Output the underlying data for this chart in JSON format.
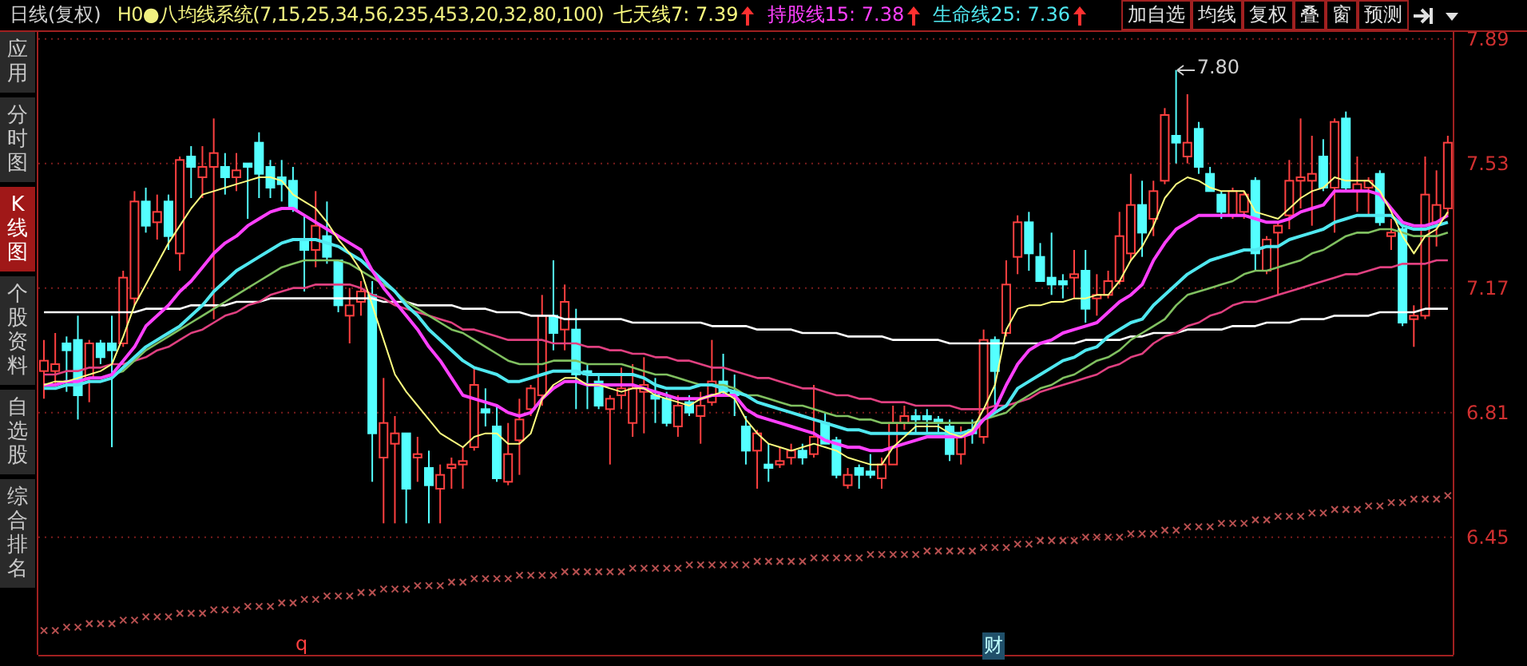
{
  "chart_data": {
    "type": "candlestick",
    "title": "日线(复权)",
    "subtitle": "H0●八均线系统(7,15,25,34,56,235,453,20,32,80,100)",
    "categories": [
      null,
      null,
      null,
      null,
      null,
      null,
      null,
      null,
      null,
      null,
      null,
      null,
      null,
      null,
      null,
      null,
      null,
      null,
      null,
      null,
      null,
      null,
      null,
      null,
      null,
      null,
      null,
      null,
      null,
      null,
      null,
      null,
      null,
      null,
      null,
      null,
      null,
      null,
      null,
      null,
      null,
      null,
      null,
      null,
      null,
      null,
      null,
      null,
      null,
      null,
      null,
      null,
      null,
      null,
      null,
      null,
      null,
      null,
      null,
      null,
      null,
      null,
      null,
      null,
      null,
      null,
      null,
      null,
      null,
      null,
      null,
      null,
      null,
      null,
      null,
      null,
      null,
      null,
      null,
      null,
      null,
      null,
      null,
      null,
      null,
      null,
      null,
      null,
      null,
      null,
      null,
      null,
      null,
      null,
      null,
      null,
      null,
      null,
      null,
      null,
      null,
      null,
      null,
      null,
      null,
      null,
      null,
      null,
      null,
      null,
      null,
      null,
      null,
      null,
      null,
      null,
      null,
      null,
      null,
      null,
      null,
      null,
      null,
      null,
      null
    ],
    "ohlc": [
      [
        6.93,
        7.02,
        6.85,
        6.96
      ],
      [
        6.93,
        7.04,
        6.89,
        6.95
      ],
      [
        7.01,
        7.03,
        6.87,
        6.99
      ],
      [
        7.02,
        7.09,
        6.79,
        6.86
      ],
      [
        6.91,
        7.02,
        6.84,
        7.01
      ],
      [
        7.01,
        7.02,
        6.95,
        6.97
      ],
      [
        7.01,
        7.09,
        6.71,
        6.99
      ],
      [
        7.01,
        7.22,
        7.0,
        7.2
      ],
      [
        7.14,
        7.45,
        7.12,
        7.42
      ],
      [
        7.42,
        7.46,
        7.33,
        7.35
      ],
      [
        7.36,
        7.44,
        7.31,
        7.39
      ],
      [
        7.42,
        7.44,
        7.28,
        7.32
      ],
      [
        7.27,
        7.55,
        7.22,
        7.54
      ],
      [
        7.55,
        7.58,
        7.43,
        7.52
      ],
      [
        7.49,
        7.58,
        7.43,
        7.52
      ],
      [
        7.52,
        7.66,
        7.08,
        7.56
      ],
      [
        7.52,
        7.56,
        7.44,
        7.49
      ],
      [
        7.49,
        7.56,
        7.45,
        7.51
      ],
      [
        7.53,
        7.53,
        7.37,
        7.52
      ],
      [
        7.59,
        7.62,
        7.43,
        7.5
      ],
      [
        7.52,
        7.54,
        7.43,
        7.46
      ],
      [
        7.49,
        7.54,
        7.42,
        7.47
      ],
      [
        7.48,
        7.52,
        7.39,
        7.4
      ],
      [
        7.31,
        7.38,
        7.16,
        7.28
      ],
      [
        7.28,
        7.45,
        7.23,
        7.35
      ],
      [
        7.32,
        7.42,
        7.24,
        7.26
      ],
      [
        7.25,
        7.25,
        7.1,
        7.12
      ],
      [
        7.09,
        7.17,
        7.01,
        7.12
      ],
      [
        7.13,
        7.19,
        7.09,
        7.16
      ],
      [
        7.15,
        7.19,
        6.61,
        6.75
      ],
      [
        6.68,
        6.91,
        6.49,
        6.78
      ],
      [
        6.72,
        6.8,
        6.49,
        6.75
      ],
      [
        6.75,
        6.75,
        6.49,
        6.59
      ],
      [
        6.68,
        6.74,
        6.61,
        6.69
      ],
      [
        6.65,
        6.7,
        6.49,
        6.6
      ],
      [
        6.59,
        6.66,
        6.49,
        6.63
      ],
      [
        6.65,
        6.68,
        6.59,
        6.66
      ],
      [
        6.66,
        6.71,
        6.59,
        6.67
      ],
      [
        6.71,
        6.94,
        6.7,
        6.89
      ],
      [
        6.82,
        6.88,
        6.77,
        6.81
      ],
      [
        6.77,
        6.83,
        6.61,
        6.62
      ],
      [
        6.61,
        6.78,
        6.6,
        6.69
      ],
      [
        6.73,
        6.85,
        6.63,
        6.79
      ],
      [
        6.82,
        6.89,
        6.8,
        6.88
      ],
      [
        6.86,
        7.15,
        6.83,
        7.09
      ],
      [
        7.09,
        7.25,
        6.99,
        7.04
      ],
      [
        7.05,
        7.18,
        6.99,
        7.13
      ],
      [
        7.05,
        7.11,
        6.82,
        6.92
      ],
      [
        6.93,
        6.95,
        6.82,
        6.92
      ],
      [
        6.9,
        6.92,
        6.82,
        6.83
      ],
      [
        6.82,
        6.86,
        6.66,
        6.85
      ],
      [
        6.86,
        6.94,
        6.82,
        6.88
      ],
      [
        6.78,
        6.95,
        6.74,
        6.88
      ],
      [
        6.87,
        6.97,
        6.75,
        6.89
      ],
      [
        6.86,
        6.91,
        6.78,
        6.85
      ],
      [
        6.85,
        6.87,
        6.77,
        6.78
      ],
      [
        6.77,
        6.86,
        6.74,
        6.83
      ],
      [
        6.84,
        6.86,
        6.8,
        6.81
      ],
      [
        6.8,
        6.87,
        6.72,
        6.83
      ],
      [
        6.84,
        7.02,
        6.83,
        6.9
      ],
      [
        6.9,
        6.98,
        6.86,
        6.87
      ],
      [
        6.87,
        6.92,
        6.8,
        6.86
      ],
      [
        6.77,
        6.8,
        6.66,
        6.7
      ],
      [
        6.7,
        6.76,
        6.59,
        6.75
      ],
      [
        6.66,
        6.72,
        6.61,
        6.65
      ],
      [
        6.66,
        6.71,
        6.65,
        6.67
      ],
      [
        6.68,
        6.72,
        6.66,
        6.7
      ],
      [
        6.7,
        6.72,
        6.66,
        6.68
      ],
      [
        6.69,
        6.89,
        6.68,
        6.74
      ],
      [
        6.78,
        6.81,
        6.72,
        6.72
      ],
      [
        6.73,
        6.74,
        6.62,
        6.63
      ],
      [
        6.6,
        6.65,
        6.59,
        6.63
      ],
      [
        6.65,
        6.66,
        6.59,
        6.63
      ],
      [
        6.64,
        6.69,
        6.62,
        6.63
      ],
      [
        6.62,
        6.68,
        6.59,
        6.66
      ],
      [
        6.66,
        6.83,
        6.66,
        6.78
      ],
      [
        6.78,
        6.83,
        6.76,
        6.8
      ],
      [
        6.8,
        6.82,
        6.75,
        6.79
      ],
      [
        6.8,
        6.82,
        6.75,
        6.79
      ],
      [
        6.79,
        6.8,
        6.75,
        6.78
      ],
      [
        6.77,
        6.79,
        6.67,
        6.69
      ],
      [
        6.69,
        6.77,
        6.66,
        6.74
      ],
      [
        6.76,
        6.79,
        6.72,
        6.75
      ],
      [
        6.74,
        7.05,
        6.72,
        7.02
      ],
      [
        7.02,
        7.03,
        6.83,
        6.93
      ],
      [
        7.04,
        7.25,
        7.03,
        7.18
      ],
      [
        7.26,
        7.38,
        7.21,
        7.36
      ],
      [
        7.36,
        7.39,
        7.22,
        7.27
      ],
      [
        7.26,
        7.3,
        7.19,
        7.19
      ],
      [
        7.2,
        7.33,
        7.15,
        7.18
      ],
      [
        7.19,
        7.21,
        7.14,
        7.18
      ],
      [
        7.2,
        7.28,
        7.14,
        7.21
      ],
      [
        7.22,
        7.28,
        7.07,
        7.11
      ],
      [
        7.14,
        7.21,
        7.09,
        7.15
      ],
      [
        7.15,
        7.22,
        7.14,
        7.19
      ],
      [
        7.19,
        7.39,
        7.18,
        7.32
      ],
      [
        7.27,
        7.5,
        7.25,
        7.41
      ],
      [
        7.41,
        7.48,
        7.26,
        7.33
      ],
      [
        7.37,
        7.48,
        7.32,
        7.45
      ],
      [
        7.48,
        7.69,
        7.47,
        7.67
      ],
      [
        7.61,
        7.8,
        7.53,
        7.59
      ],
      [
        7.55,
        7.73,
        7.53,
        7.59
      ],
      [
        7.63,
        7.65,
        7.5,
        7.52
      ],
      [
        7.5,
        7.52,
        7.45,
        7.45
      ],
      [
        7.44,
        7.45,
        7.37,
        7.39
      ],
      [
        7.38,
        7.46,
        7.37,
        7.45
      ],
      [
        7.39,
        7.45,
        7.37,
        7.44
      ],
      [
        7.48,
        7.49,
        7.22,
        7.27
      ],
      [
        7.22,
        7.32,
        7.21,
        7.31
      ],
      [
        7.33,
        7.36,
        7.15,
        7.35
      ],
      [
        7.38,
        7.54,
        7.34,
        7.48
      ],
      [
        7.48,
        7.66,
        7.4,
        7.49
      ],
      [
        7.48,
        7.61,
        7.35,
        7.5
      ],
      [
        7.55,
        7.6,
        7.45,
        7.46
      ],
      [
        7.46,
        7.66,
        7.33,
        7.65
      ],
      [
        7.66,
        7.68,
        7.45,
        7.46
      ],
      [
        7.45,
        7.55,
        7.39,
        7.47
      ],
      [
        7.46,
        7.49,
        7.38,
        7.48
      ],
      [
        7.5,
        7.51,
        7.35,
        7.36
      ],
      [
        7.32,
        7.37,
        7.28,
        7.33
      ],
      [
        7.34,
        7.35,
        7.06,
        7.07
      ],
      [
        7.08,
        7.12,
        7.0,
        7.09
      ],
      [
        7.09,
        7.55,
        7.08,
        7.44
      ],
      [
        7.36,
        7.51,
        7.29,
        7.41
      ],
      [
        7.4,
        7.61,
        7.38,
        7.59
      ]
    ],
    "colors": [
      "#ff4040",
      "#ff4040",
      "#54ffff",
      "#54ffff",
      "#ff4040",
      "#54ffff",
      "#54ffff",
      "#ff4040",
      "#ff4040",
      "#54ffff",
      "#ff4040",
      "#54ffff",
      "#ff4040",
      "#54ffff",
      "#ff4040",
      "#ff4040",
      "#54ffff",
      "#ff4040",
      "#54ffff",
      "#54ffff",
      "#54ffff",
      "#54ffff",
      "#54ffff",
      "#54ffff",
      "#ff4040",
      "#54ffff",
      "#54ffff",
      "#ff4040",
      "#ff4040",
      "#54ffff",
      "#ff4040",
      "#ff4040",
      "#54ffff",
      "#ff4040",
      "#54ffff",
      "#ff4040",
      "#ff4040",
      "#ff4040",
      "#ff4040",
      "#54ffff",
      "#54ffff",
      "#ff4040",
      "#ff4040",
      "#ff4040",
      "#ff4040",
      "#54ffff",
      "#ff4040",
      "#54ffff",
      "#54ffff",
      "#54ffff",
      "#ff4040",
      "#ff4040",
      "#ff4040",
      "#ff4040",
      "#54ffff",
      "#54ffff",
      "#ff4040",
      "#54ffff",
      "#ff4040",
      "#ff4040",
      "#54ffff",
      "#54ffff",
      "#54ffff",
      "#ff4040",
      "#54ffff",
      "#ff4040",
      "#ff4040",
      "#54ffff",
      "#ff4040",
      "#54ffff",
      "#54ffff",
      "#ff4040",
      "#54ffff",
      "#54ffff",
      "#ff4040",
      "#ff4040",
      "#ff4040",
      "#54ffff",
      "#54ffff",
      "#54ffff",
      "#54ffff",
      "#ff4040",
      "#54ffff",
      "#ff4040",
      "#54ffff",
      "#ff4040",
      "#ff4040",
      "#54ffff",
      "#54ffff",
      "#54ffff",
      "#54ffff",
      "#ff4040",
      "#54ffff",
      "#ff4040",
      "#ff4040",
      "#ff4040",
      "#ff4040",
      "#54ffff",
      "#ff4040",
      "#ff4040",
      "#54ffff",
      "#ff4040",
      "#54ffff",
      "#54ffff",
      "#54ffff",
      "#ff4040",
      "#ff4040",
      "#54ffff",
      "#ff4040",
      "#ff4040",
      "#ff4040",
      "#ff4040",
      "#ff4040",
      "#54ffff",
      "#ff4040",
      "#54ffff",
      "#ff4040",
      "#ff4040",
      "#54ffff",
      "#ff4040",
      "#54ffff",
      "#ff4040",
      "#ff4040",
      "#ff4040",
      "#ff4040"
    ],
    "series": [
      {
        "type": "line",
        "name": "七天线7: 7.39",
        "color": "#ffff80",
        "values": [
          6.89,
          6.9,
          6.9,
          6.91,
          6.92,
          6.93,
          6.95,
          7.03,
          7.12,
          7.18,
          7.24,
          7.3,
          7.35,
          7.4,
          7.44,
          7.45,
          7.46,
          7.47,
          7.48,
          7.49,
          7.49,
          7.48,
          7.44,
          7.42,
          7.4,
          7.36,
          7.31,
          7.27,
          7.22,
          7.12,
          7.02,
          6.92,
          6.87,
          6.83,
          6.79,
          6.75,
          6.73,
          6.71,
          6.74,
          6.75,
          6.75,
          6.72,
          6.72,
          6.75,
          6.85,
          6.89,
          6.91,
          6.91,
          6.89,
          6.89,
          6.88,
          6.87,
          6.88,
          6.88,
          6.86,
          6.85,
          6.84,
          6.83,
          6.85,
          6.86,
          6.87,
          6.85,
          6.79,
          6.75,
          6.72,
          6.71,
          6.7,
          6.71,
          6.72,
          6.71,
          6.7,
          6.68,
          6.67,
          6.66,
          6.66,
          6.71,
          6.74,
          6.77,
          6.77,
          6.77,
          6.75,
          6.74,
          6.76,
          6.82,
          6.89,
          7.05,
          7.11,
          7.12,
          7.12,
          7.13,
          7.13,
          7.14,
          7.14,
          7.15,
          7.15,
          7.19,
          7.25,
          7.29,
          7.35,
          7.43,
          7.47,
          7.49,
          7.48,
          7.46,
          7.45,
          7.45,
          7.45,
          7.39,
          7.38,
          7.37,
          7.4,
          7.43,
          7.45,
          7.46,
          7.49,
          7.48,
          7.48,
          7.48,
          7.45,
          7.39,
          7.32,
          7.27,
          7.32,
          7.34,
          7.39
        ]
      },
      {
        "type": "line",
        "name": "持股线15: 7.38",
        "color": "#ff40ff",
        "values": [
          6.89,
          6.89,
          6.9,
          6.9,
          6.91,
          6.91,
          6.92,
          6.96,
          7.0,
          7.06,
          7.09,
          7.12,
          7.16,
          7.19,
          7.23,
          7.27,
          7.3,
          7.32,
          7.35,
          7.37,
          7.39,
          7.4,
          7.4,
          7.38,
          7.36,
          7.34,
          7.32,
          7.3,
          7.28,
          7.22,
          7.17,
          7.13,
          7.09,
          7.05,
          7.0,
          6.96,
          6.91,
          6.86,
          6.85,
          6.84,
          6.83,
          6.81,
          6.8,
          6.81,
          6.85,
          6.88,
          6.9,
          6.9,
          6.89,
          6.89,
          6.89,
          6.89,
          6.89,
          6.88,
          6.87,
          6.86,
          6.85,
          6.85,
          6.85,
          6.86,
          6.86,
          6.86,
          6.82,
          6.8,
          6.79,
          6.78,
          6.77,
          6.76,
          6.75,
          6.73,
          6.72,
          6.71,
          6.71,
          6.7,
          6.7,
          6.71,
          6.72,
          6.73,
          6.74,
          6.74,
          6.74,
          6.74,
          6.75,
          6.79,
          6.82,
          6.89,
          6.95,
          6.99,
          7.01,
          7.02,
          7.04,
          7.05,
          7.06,
          7.07,
          7.1,
          7.13,
          7.15,
          7.18,
          7.25,
          7.3,
          7.34,
          7.36,
          7.38,
          7.38,
          7.38,
          7.38,
          7.38,
          7.37,
          7.36,
          7.36,
          7.37,
          7.39,
          7.4,
          7.41,
          7.45,
          7.45,
          7.45,
          7.45,
          7.44,
          7.4,
          7.36,
          7.35,
          7.35,
          7.36,
          7.38
        ]
      },
      {
        "type": "line",
        "name": "生命线25: 7.36",
        "color": "#50e8f0",
        "values": [
          6.88,
          6.88,
          6.89,
          6.89,
          6.9,
          6.9,
          6.91,
          6.94,
          6.97,
          7.0,
          7.02,
          7.04,
          7.06,
          7.09,
          7.12,
          7.16,
          7.19,
          7.22,
          7.24,
          7.26,
          7.28,
          7.3,
          7.31,
          7.31,
          7.31,
          7.3,
          7.29,
          7.27,
          7.25,
          7.22,
          7.19,
          7.16,
          7.12,
          7.09,
          7.05,
          7.02,
          6.99,
          6.96,
          6.94,
          6.93,
          6.92,
          6.9,
          6.9,
          6.91,
          6.92,
          6.93,
          6.93,
          6.93,
          6.92,
          6.92,
          6.92,
          6.92,
          6.92,
          6.91,
          6.89,
          6.88,
          6.88,
          6.88,
          6.89,
          6.89,
          6.88,
          6.87,
          6.86,
          6.84,
          6.83,
          6.82,
          6.81,
          6.8,
          6.79,
          6.78,
          6.77,
          6.76,
          6.76,
          6.75,
          6.75,
          6.75,
          6.75,
          6.75,
          6.75,
          6.75,
          6.75,
          6.75,
          6.76,
          6.79,
          6.81,
          6.83,
          6.88,
          6.9,
          6.92,
          6.94,
          6.96,
          6.97,
          6.99,
          7.0,
          7.03,
          7.05,
          7.07,
          7.08,
          7.12,
          7.15,
          7.18,
          7.21,
          7.23,
          7.25,
          7.26,
          7.27,
          7.28,
          7.28,
          7.29,
          7.29,
          7.31,
          7.32,
          7.33,
          7.34,
          7.36,
          7.37,
          7.38,
          7.38,
          7.38,
          7.38,
          7.35,
          7.34,
          7.34,
          7.35,
          7.36
        ]
      },
      {
        "type": "line",
        "color": "#80c060",
        "values": [
          6.89,
          6.89,
          6.9,
          6.9,
          6.91,
          6.91,
          6.92,
          6.93,
          6.96,
          6.99,
          7.01,
          7.03,
          7.05,
          7.07,
          7.09,
          7.11,
          7.13,
          7.15,
          7.17,
          7.19,
          7.21,
          7.23,
          7.24,
          7.25,
          7.25,
          7.25,
          7.25,
          7.24,
          7.22,
          7.2,
          7.18,
          7.16,
          7.13,
          7.11,
          7.09,
          7.07,
          7.05,
          7.04,
          7.02,
          7.0,
          6.98,
          6.96,
          6.95,
          6.95,
          6.95,
          6.96,
          6.96,
          6.96,
          6.95,
          6.95,
          6.95,
          6.95,
          6.94,
          6.93,
          6.92,
          6.92,
          6.91,
          6.9,
          6.89,
          6.89,
          6.89,
          6.88,
          6.86,
          6.86,
          6.85,
          6.84,
          6.83,
          6.83,
          6.82,
          6.81,
          6.8,
          6.8,
          6.79,
          6.79,
          6.78,
          6.78,
          6.78,
          6.78,
          6.78,
          6.78,
          6.78,
          6.78,
          6.78,
          6.79,
          6.8,
          6.81,
          6.84,
          6.86,
          6.88,
          6.89,
          6.91,
          6.92,
          6.94,
          6.96,
          6.97,
          6.99,
          7.02,
          7.04,
          7.06,
          7.08,
          7.12,
          7.15,
          7.16,
          7.17,
          7.18,
          7.19,
          7.21,
          7.22,
          7.22,
          7.23,
          7.24,
          7.25,
          7.27,
          7.28,
          7.3,
          7.32,
          7.33,
          7.33,
          7.34,
          7.34,
          7.33,
          7.32,
          7.32,
          7.32,
          7.33
        ]
      },
      {
        "type": "line",
        "color": "#e04080",
        "values": [
          6.92,
          6.92,
          6.93,
          6.93,
          6.94,
          6.94,
          6.95,
          6.95,
          6.96,
          6.97,
          6.99,
          7.0,
          7.02,
          7.04,
          7.05,
          7.07,
          7.09,
          7.1,
          7.12,
          7.13,
          7.15,
          7.16,
          7.17,
          7.17,
          7.18,
          7.18,
          7.18,
          7.18,
          7.17,
          7.15,
          7.14,
          7.12,
          7.11,
          7.1,
          7.09,
          7.08,
          7.07,
          7.05,
          7.05,
          7.04,
          7.03,
          7.02,
          7.02,
          7.02,
          7.02,
          7.01,
          7.01,
          7.01,
          7.0,
          7.0,
          6.99,
          6.99,
          6.98,
          6.98,
          6.97,
          6.97,
          6.96,
          6.96,
          6.95,
          6.94,
          6.94,
          6.93,
          6.92,
          6.91,
          6.91,
          6.9,
          6.89,
          6.88,
          6.88,
          6.87,
          6.86,
          6.86,
          6.85,
          6.85,
          6.84,
          6.84,
          6.84,
          6.83,
          6.83,
          6.83,
          6.83,
          6.82,
          6.82,
          6.82,
          6.83,
          6.83,
          6.84,
          6.85,
          6.87,
          6.88,
          6.89,
          6.9,
          6.91,
          6.92,
          6.94,
          6.95,
          6.97,
          6.98,
          7.01,
          7.03,
          7.04,
          7.06,
          7.07,
          7.09,
          7.1,
          7.12,
          7.13,
          7.13,
          7.14,
          7.15,
          7.16,
          7.17,
          7.18,
          7.19,
          7.2,
          7.21,
          7.21,
          7.22,
          7.23,
          7.23,
          7.24,
          7.24,
          7.24,
          7.25,
          7.25
        ]
      },
      {
        "type": "line",
        "color": "#ffffff",
        "values": [
          7.1,
          7.1,
          7.1,
          7.1,
          7.1,
          7.1,
          7.1,
          7.1,
          7.1,
          7.11,
          7.11,
          7.11,
          7.11,
          7.12,
          7.12,
          7.12,
          7.12,
          7.13,
          7.13,
          7.13,
          7.14,
          7.14,
          7.14,
          7.14,
          7.14,
          7.14,
          7.14,
          7.14,
          7.14,
          7.14,
          7.13,
          7.13,
          7.13,
          7.12,
          7.12,
          7.12,
          7.12,
          7.11,
          7.11,
          7.11,
          7.1,
          7.1,
          7.1,
          7.09,
          7.09,
          7.09,
          7.08,
          7.08,
          7.08,
          7.08,
          7.08,
          7.08,
          7.07,
          7.07,
          7.07,
          7.07,
          7.07,
          7.07,
          7.07,
          7.06,
          7.06,
          7.06,
          7.06,
          7.05,
          7.05,
          7.05,
          7.05,
          7.04,
          7.04,
          7.04,
          7.04,
          7.03,
          7.03,
          7.03,
          7.03,
          7.02,
          7.02,
          7.02,
          7.02,
          7.02,
          7.01,
          7.01,
          7.01,
          7.01,
          7.01,
          7.01,
          7.01,
          7.01,
          7.01,
          7.01,
          7.01,
          7.01,
          7.02,
          7.02,
          7.02,
          7.02,
          7.03,
          7.03,
          7.04,
          7.04,
          7.04,
          7.05,
          7.05,
          7.05,
          7.05,
          7.06,
          7.06,
          7.06,
          7.07,
          7.07,
          7.07,
          7.08,
          7.08,
          7.08,
          7.09,
          7.09,
          7.09,
          7.09,
          7.1,
          7.1,
          7.1,
          7.1,
          7.11,
          7.11,
          7.11
        ]
      },
      {
        "type": "scatter",
        "marker": "cross",
        "color": "#b85050",
        "values": [
          6.18,
          6.18,
          6.19,
          6.19,
          6.2,
          6.2,
          6.2,
          6.21,
          6.21,
          6.22,
          6.22,
          6.22,
          6.23,
          6.23,
          6.23,
          6.24,
          6.24,
          6.24,
          6.25,
          6.25,
          6.25,
          6.26,
          6.26,
          6.27,
          6.27,
          6.28,
          6.28,
          6.28,
          6.29,
          6.29,
          6.3,
          6.3,
          6.3,
          6.31,
          6.31,
          6.31,
          6.32,
          6.32,
          6.33,
          6.33,
          6.33,
          6.33,
          6.34,
          6.34,
          6.34,
          6.34,
          6.35,
          6.35,
          6.35,
          6.35,
          6.35,
          6.35,
          6.36,
          6.36,
          6.36,
          6.36,
          6.36,
          6.37,
          6.37,
          6.37,
          6.37,
          6.37,
          6.37,
          6.38,
          6.38,
          6.38,
          6.38,
          6.38,
          6.39,
          6.39,
          6.39,
          6.39,
          6.39,
          6.4,
          6.4,
          6.4,
          6.4,
          6.4,
          6.41,
          6.41,
          6.41,
          6.41,
          6.41,
          6.42,
          6.42,
          6.42,
          6.43,
          6.43,
          6.44,
          6.44,
          6.44,
          6.44,
          6.45,
          6.45,
          6.45,
          6.45,
          6.46,
          6.46,
          6.46,
          6.47,
          6.47,
          6.48,
          6.48,
          6.48,
          6.49,
          6.49,
          6.49,
          6.5,
          6.5,
          6.51,
          6.51,
          6.51,
          6.52,
          6.52,
          6.53,
          6.53,
          6.53,
          6.54,
          6.54,
          6.55,
          6.55,
          6.56,
          6.56,
          6.56,
          6.57
        ]
      }
    ],
    "ylim": [
      6.11,
      7.91
    ],
    "yticks": [
      6.45,
      6.81,
      7.17,
      7.53,
      7.89
    ],
    "grid": "y",
    "tick_labels": "y",
    "annotations": [
      "加自选",
      "均线",
      "复权",
      "叠",
      "窗",
      "预测",
      "应用",
      "分时图",
      "K线图",
      "个股资料",
      "自选股",
      "综合排名",
      "q",
      "财",
      "7.80"
    ]
  }
}
